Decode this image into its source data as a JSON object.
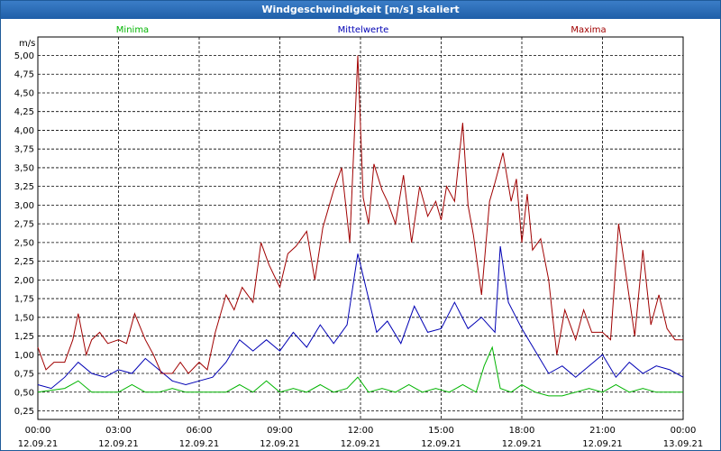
{
  "window": {
    "title": "Windgeschwindigkeit [m/s] skaliert"
  },
  "chart_data": {
    "type": "line",
    "title": "Windgeschwindigkeit [m/s] skaliert",
    "ylabel": "m/s",
    "xlabel": "",
    "ylim": [
      0.25,
      5.0
    ],
    "xlim": [
      0,
      24
    ],
    "grid": true,
    "legend_placement": "top",
    "y_ticks": [
      "0,25",
      "0,50",
      "0,75",
      "1,00",
      "1,25",
      "1,50",
      "1,75",
      "2,00",
      "2,25",
      "2,50",
      "2,75",
      "3,00",
      "3,25",
      "3,50",
      "3,75",
      "4,00",
      "4,25",
      "4,50",
      "4,75",
      "5,00"
    ],
    "x_ticks": [
      {
        "time": "00:00",
        "date": "12.09.21"
      },
      {
        "time": "03:00",
        "date": "12.09.21"
      },
      {
        "time": "06:00",
        "date": "12.09.21"
      },
      {
        "time": "09:00",
        "date": "12.09.21"
      },
      {
        "time": "12:00",
        "date": "12.09.21"
      },
      {
        "time": "15:00",
        "date": "12.09.21"
      },
      {
        "time": "18:00",
        "date": "12.09.21"
      },
      {
        "time": "21:00",
        "date": "12.09.21"
      },
      {
        "time": "00:00",
        "date": "13.09.21"
      }
    ],
    "series": [
      {
        "name": "Minima",
        "color": "#00b400",
        "x": [
          0,
          1,
          1.5,
          2,
          2.5,
          3,
          3.5,
          4,
          4.5,
          5,
          5.5,
          6,
          6.5,
          7,
          7.5,
          8,
          8.5,
          9,
          9.5,
          10,
          10.5,
          11,
          11.5,
          11.9,
          12.3,
          12.8,
          13.3,
          13.8,
          14.3,
          14.8,
          15.3,
          15.8,
          16.3,
          16.6,
          16.9,
          17.2,
          17.6,
          18,
          18.5,
          19,
          19.5,
          20,
          20.5,
          21,
          21.5,
          22,
          22.5,
          23,
          23.5,
          24
        ],
        "values": [
          0.5,
          0.55,
          0.65,
          0.5,
          0.5,
          0.5,
          0.6,
          0.5,
          0.5,
          0.55,
          0.5,
          0.5,
          0.5,
          0.5,
          0.6,
          0.5,
          0.65,
          0.5,
          0.55,
          0.5,
          0.6,
          0.5,
          0.55,
          0.7,
          0.5,
          0.55,
          0.5,
          0.6,
          0.5,
          0.55,
          0.5,
          0.6,
          0.5,
          0.85,
          1.1,
          0.55,
          0.5,
          0.6,
          0.5,
          0.45,
          0.45,
          0.5,
          0.55,
          0.5,
          0.6,
          0.5,
          0.55,
          0.5,
          0.5,
          0.5
        ]
      },
      {
        "name": "Mittelwerte",
        "color": "#0000b4",
        "x": [
          0,
          0.5,
          1,
          1.5,
          2,
          2.5,
          3,
          3.5,
          4,
          4.5,
          5,
          5.5,
          6,
          6.5,
          7,
          7.5,
          8,
          8.5,
          9,
          9.5,
          10,
          10.5,
          11,
          11.5,
          11.9,
          12.2,
          12.6,
          13,
          13.5,
          14,
          14.5,
          15,
          15.5,
          16,
          16.5,
          17,
          17.2,
          17.5,
          18,
          18.5,
          19,
          19.5,
          20,
          20.5,
          21,
          21.5,
          22,
          22.5,
          23,
          23.5,
          24
        ],
        "values": [
          0.6,
          0.55,
          0.7,
          0.9,
          0.75,
          0.7,
          0.8,
          0.75,
          0.95,
          0.8,
          0.65,
          0.6,
          0.65,
          0.7,
          0.9,
          1.2,
          1.05,
          1.2,
          1.05,
          1.3,
          1.1,
          1.4,
          1.15,
          1.4,
          2.35,
          1.9,
          1.3,
          1.45,
          1.15,
          1.65,
          1.3,
          1.35,
          1.7,
          1.35,
          1.5,
          1.3,
          2.45,
          1.7,
          1.35,
          1.05,
          0.75,
          0.85,
          0.7,
          0.85,
          1.0,
          0.7,
          0.9,
          0.75,
          0.85,
          0.8,
          0.7
        ]
      },
      {
        "name": "Maxima",
        "color": "#a00000",
        "x": [
          0,
          0.3,
          0.6,
          1,
          1.3,
          1.5,
          1.8,
          2,
          2.3,
          2.6,
          3,
          3.3,
          3.6,
          4,
          4.3,
          4.6,
          5,
          5.3,
          5.6,
          6,
          6.3,
          6.6,
          7,
          7.3,
          7.6,
          8,
          8.3,
          8.6,
          9,
          9.3,
          9.6,
          10,
          10.3,
          10.6,
          11,
          11.3,
          11.6,
          11.9,
          12.1,
          12.3,
          12.5,
          12.8,
          13,
          13.3,
          13.6,
          13.9,
          14.2,
          14.5,
          14.8,
          15,
          15.2,
          15.5,
          15.8,
          16,
          16.2,
          16.5,
          16.8,
          17,
          17.3,
          17.6,
          17.8,
          18,
          18.2,
          18.4,
          18.7,
          19,
          19.3,
          19.6,
          20,
          20.3,
          20.6,
          21,
          21.3,
          21.6,
          21.9,
          22.2,
          22.5,
          22.8,
          23.1,
          23.4,
          23.7,
          24
        ],
        "values": [
          1.1,
          0.8,
          0.9,
          0.9,
          1.2,
          1.55,
          1.0,
          1.2,
          1.3,
          1.15,
          1.2,
          1.15,
          1.55,
          1.2,
          1.0,
          0.75,
          0.75,
          0.9,
          0.75,
          0.9,
          0.8,
          1.3,
          1.8,
          1.6,
          1.9,
          1.7,
          2.5,
          2.2,
          1.9,
          2.35,
          2.45,
          2.65,
          2.0,
          2.7,
          3.2,
          3.5,
          2.5,
          5.0,
          3.1,
          2.75,
          3.55,
          3.2,
          3.05,
          2.75,
          3.4,
          2.5,
          3.25,
          2.85,
          3.05,
          2.8,
          3.25,
          3.05,
          4.1,
          3.0,
          2.6,
          1.8,
          3.05,
          3.3,
          3.7,
          3.05,
          3.35,
          2.5,
          3.15,
          2.4,
          2.55,
          2.0,
          1.0,
          1.6,
          1.2,
          1.6,
          1.3,
          1.3,
          1.2,
          2.75,
          2.0,
          1.25,
          2.4,
          1.4,
          1.8,
          1.35,
          1.2,
          1.2
        ]
      }
    ]
  }
}
